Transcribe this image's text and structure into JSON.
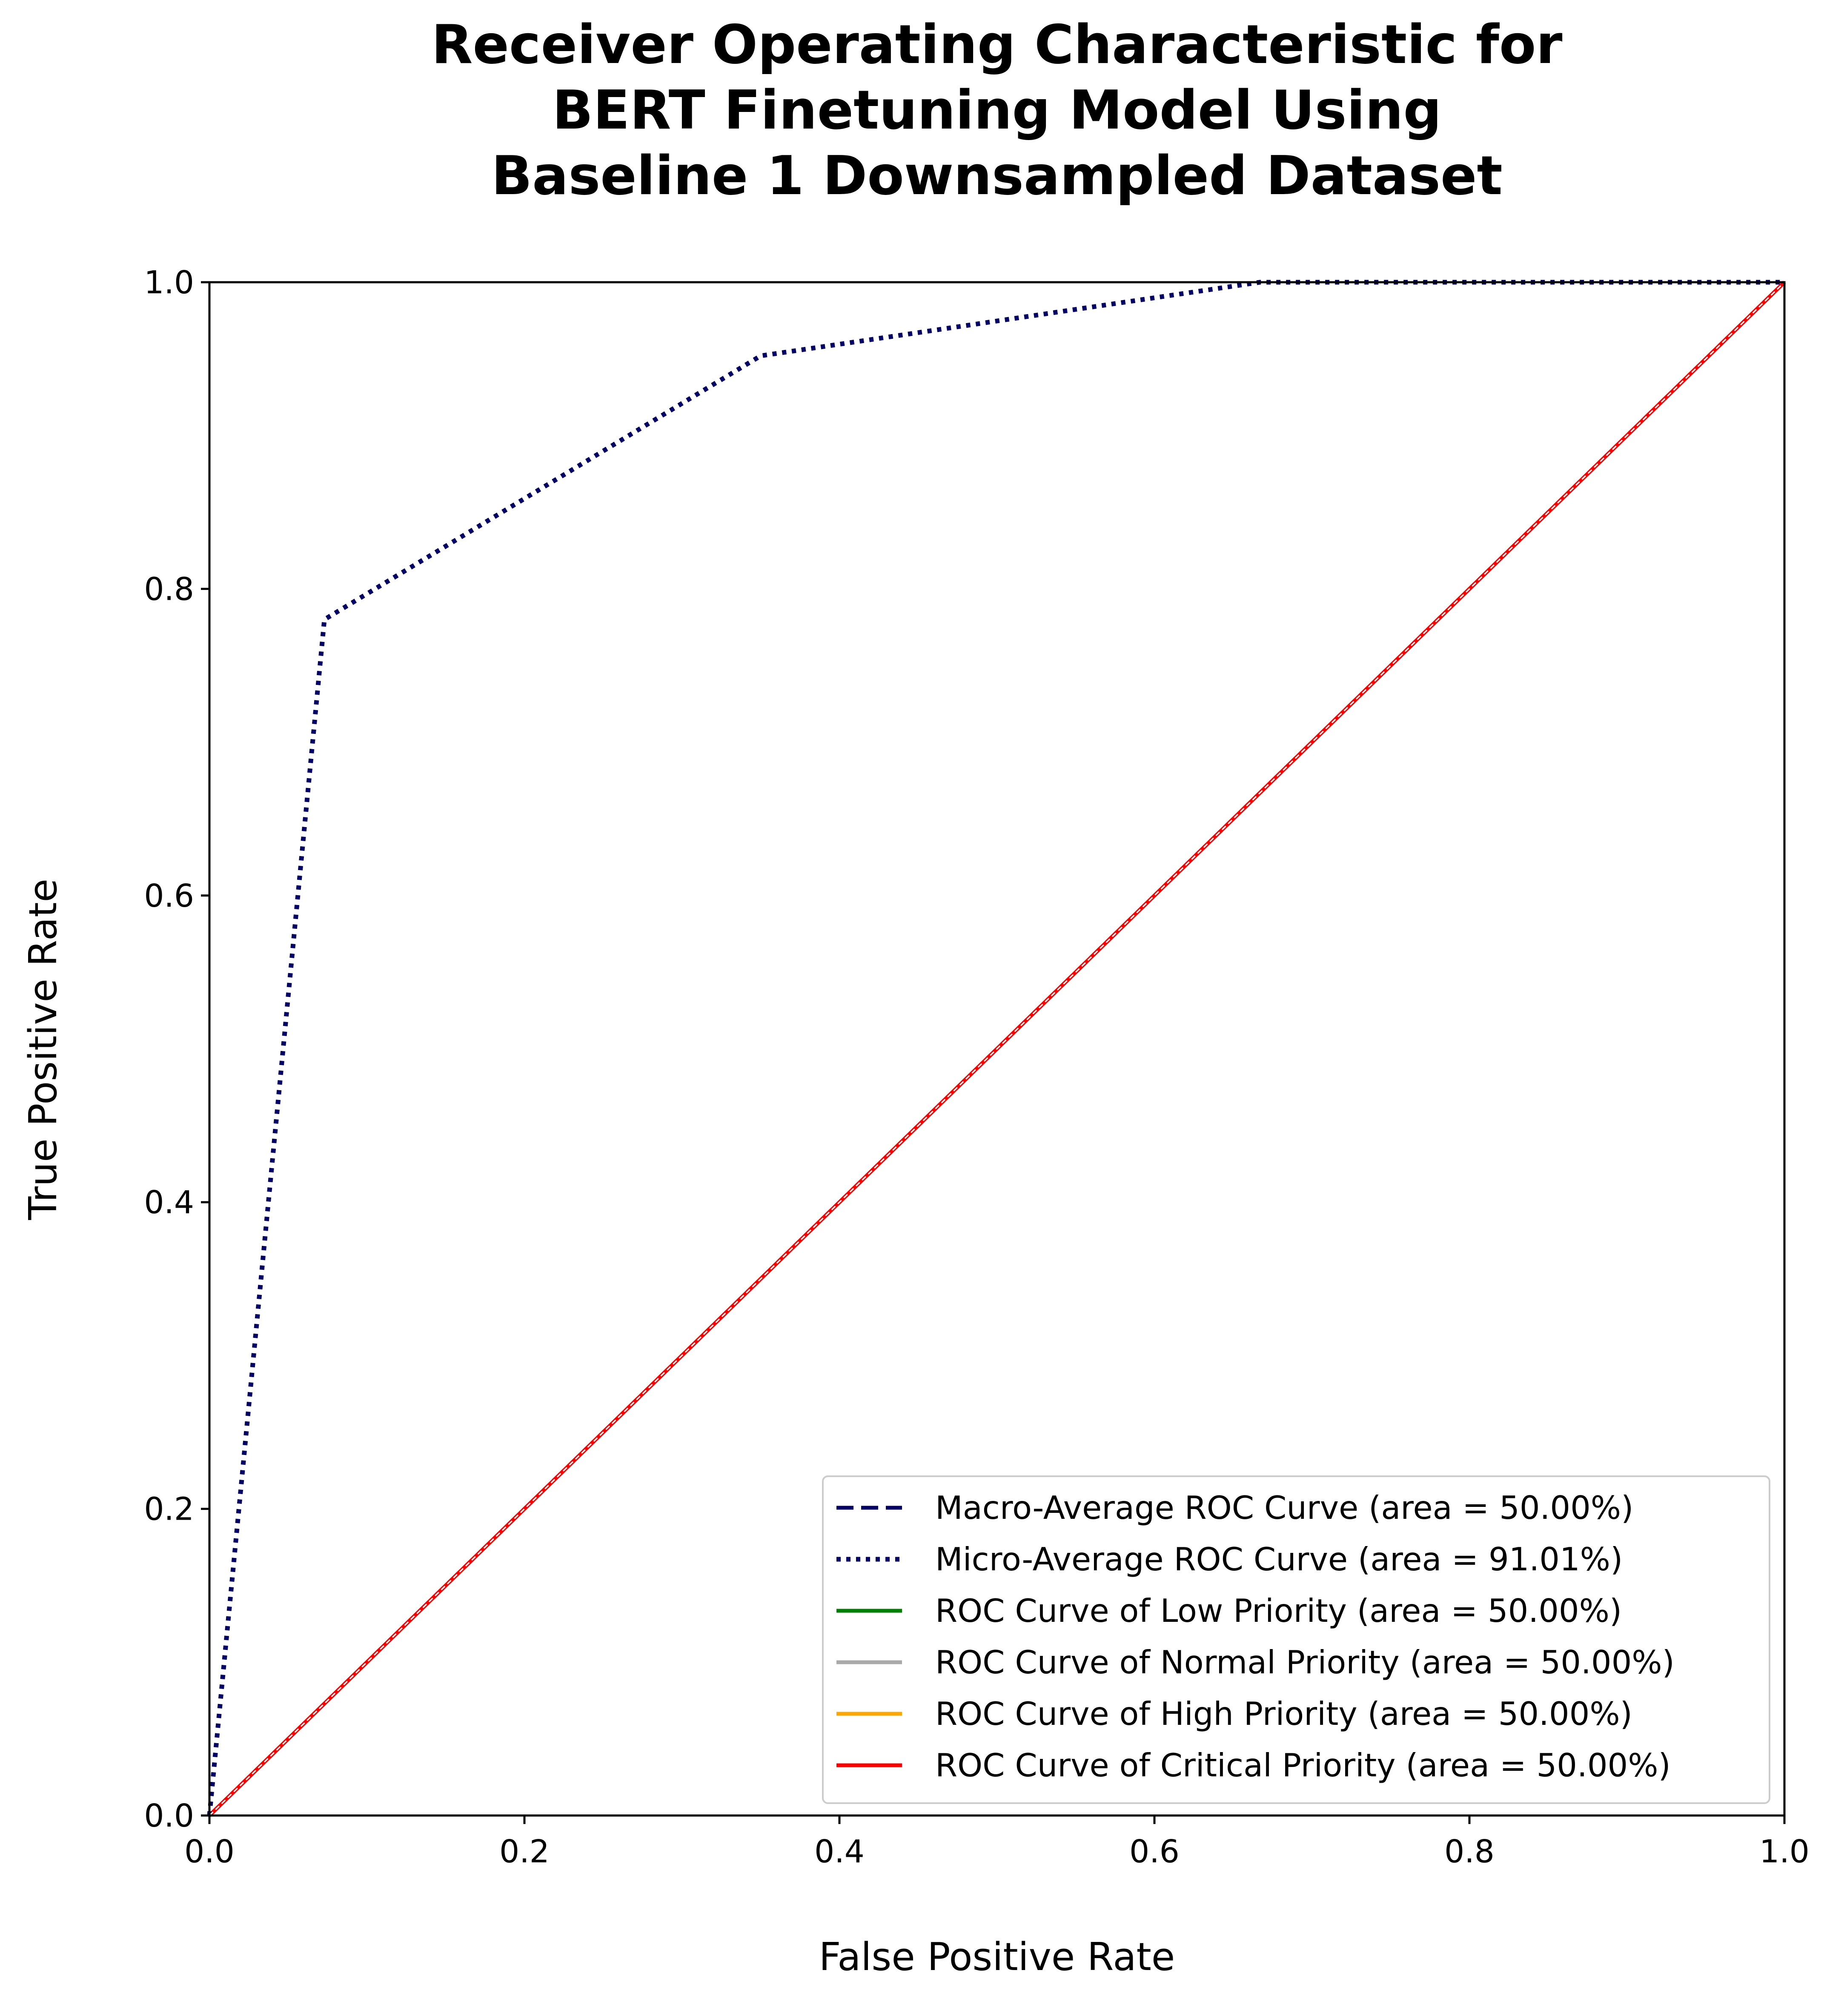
{
  "chart_data": {
    "type": "line",
    "title_lines": [
      "Receiver Operating Characteristic for",
      "BERT Finetuning Model Using",
      "Baseline 1 Downsampled Dataset"
    ],
    "xlabel": "False Positive Rate",
    "ylabel": "True Positive Rate",
    "xlim": [
      0.0,
      1.0
    ],
    "ylim": [
      0.0,
      1.0
    ],
    "xticks": [
      "0.0",
      "0.2",
      "0.4",
      "0.6",
      "0.8",
      "1.0"
    ],
    "yticks": [
      "0.0",
      "0.2",
      "0.4",
      "0.6",
      "0.8",
      "1.0"
    ],
    "grid": false,
    "legend_position": "lower-right",
    "series": [
      {
        "name": "Macro-Average ROC Curve (area = 50.00%)",
        "color": "#000066",
        "style": "dashed",
        "x": [
          0.0,
          1.0
        ],
        "y": [
          0.0,
          1.0
        ]
      },
      {
        "name": "Micro-Average ROC Curve (area = 91.01%)",
        "color": "#000066",
        "style": "dotted",
        "x": [
          0.0,
          0.073,
          0.35,
          0.667,
          1.0
        ],
        "y": [
          0.0,
          0.78,
          0.952,
          1.0,
          1.0
        ]
      },
      {
        "name": "ROC Curve of Low Priority (area = 50.00%)",
        "color": "#008000",
        "style": "solid",
        "x": [
          0.0,
          1.0
        ],
        "y": [
          0.0,
          1.0
        ]
      },
      {
        "name": "ROC Curve of Normal Priority (area = 50.00%)",
        "color": "#a9a9a9",
        "style": "solid",
        "x": [
          0.0,
          1.0
        ],
        "y": [
          0.0,
          1.0
        ]
      },
      {
        "name": "ROC Curve of High Priority (area = 50.00%)",
        "color": "#ffa500",
        "style": "solid",
        "x": [
          0.0,
          1.0
        ],
        "y": [
          0.0,
          1.0
        ]
      },
      {
        "name": "ROC Curve of Critical Priority (area = 50.00%)",
        "color": "#ff0000",
        "style": "solid",
        "x": [
          0.0,
          1.0
        ],
        "y": [
          0.0,
          1.0
        ]
      }
    ],
    "reference_line": {
      "color": "#ffffff",
      "style": "dashed",
      "x": [
        0.0,
        1.0
      ],
      "y": [
        0.0,
        1.0
      ]
    }
  }
}
